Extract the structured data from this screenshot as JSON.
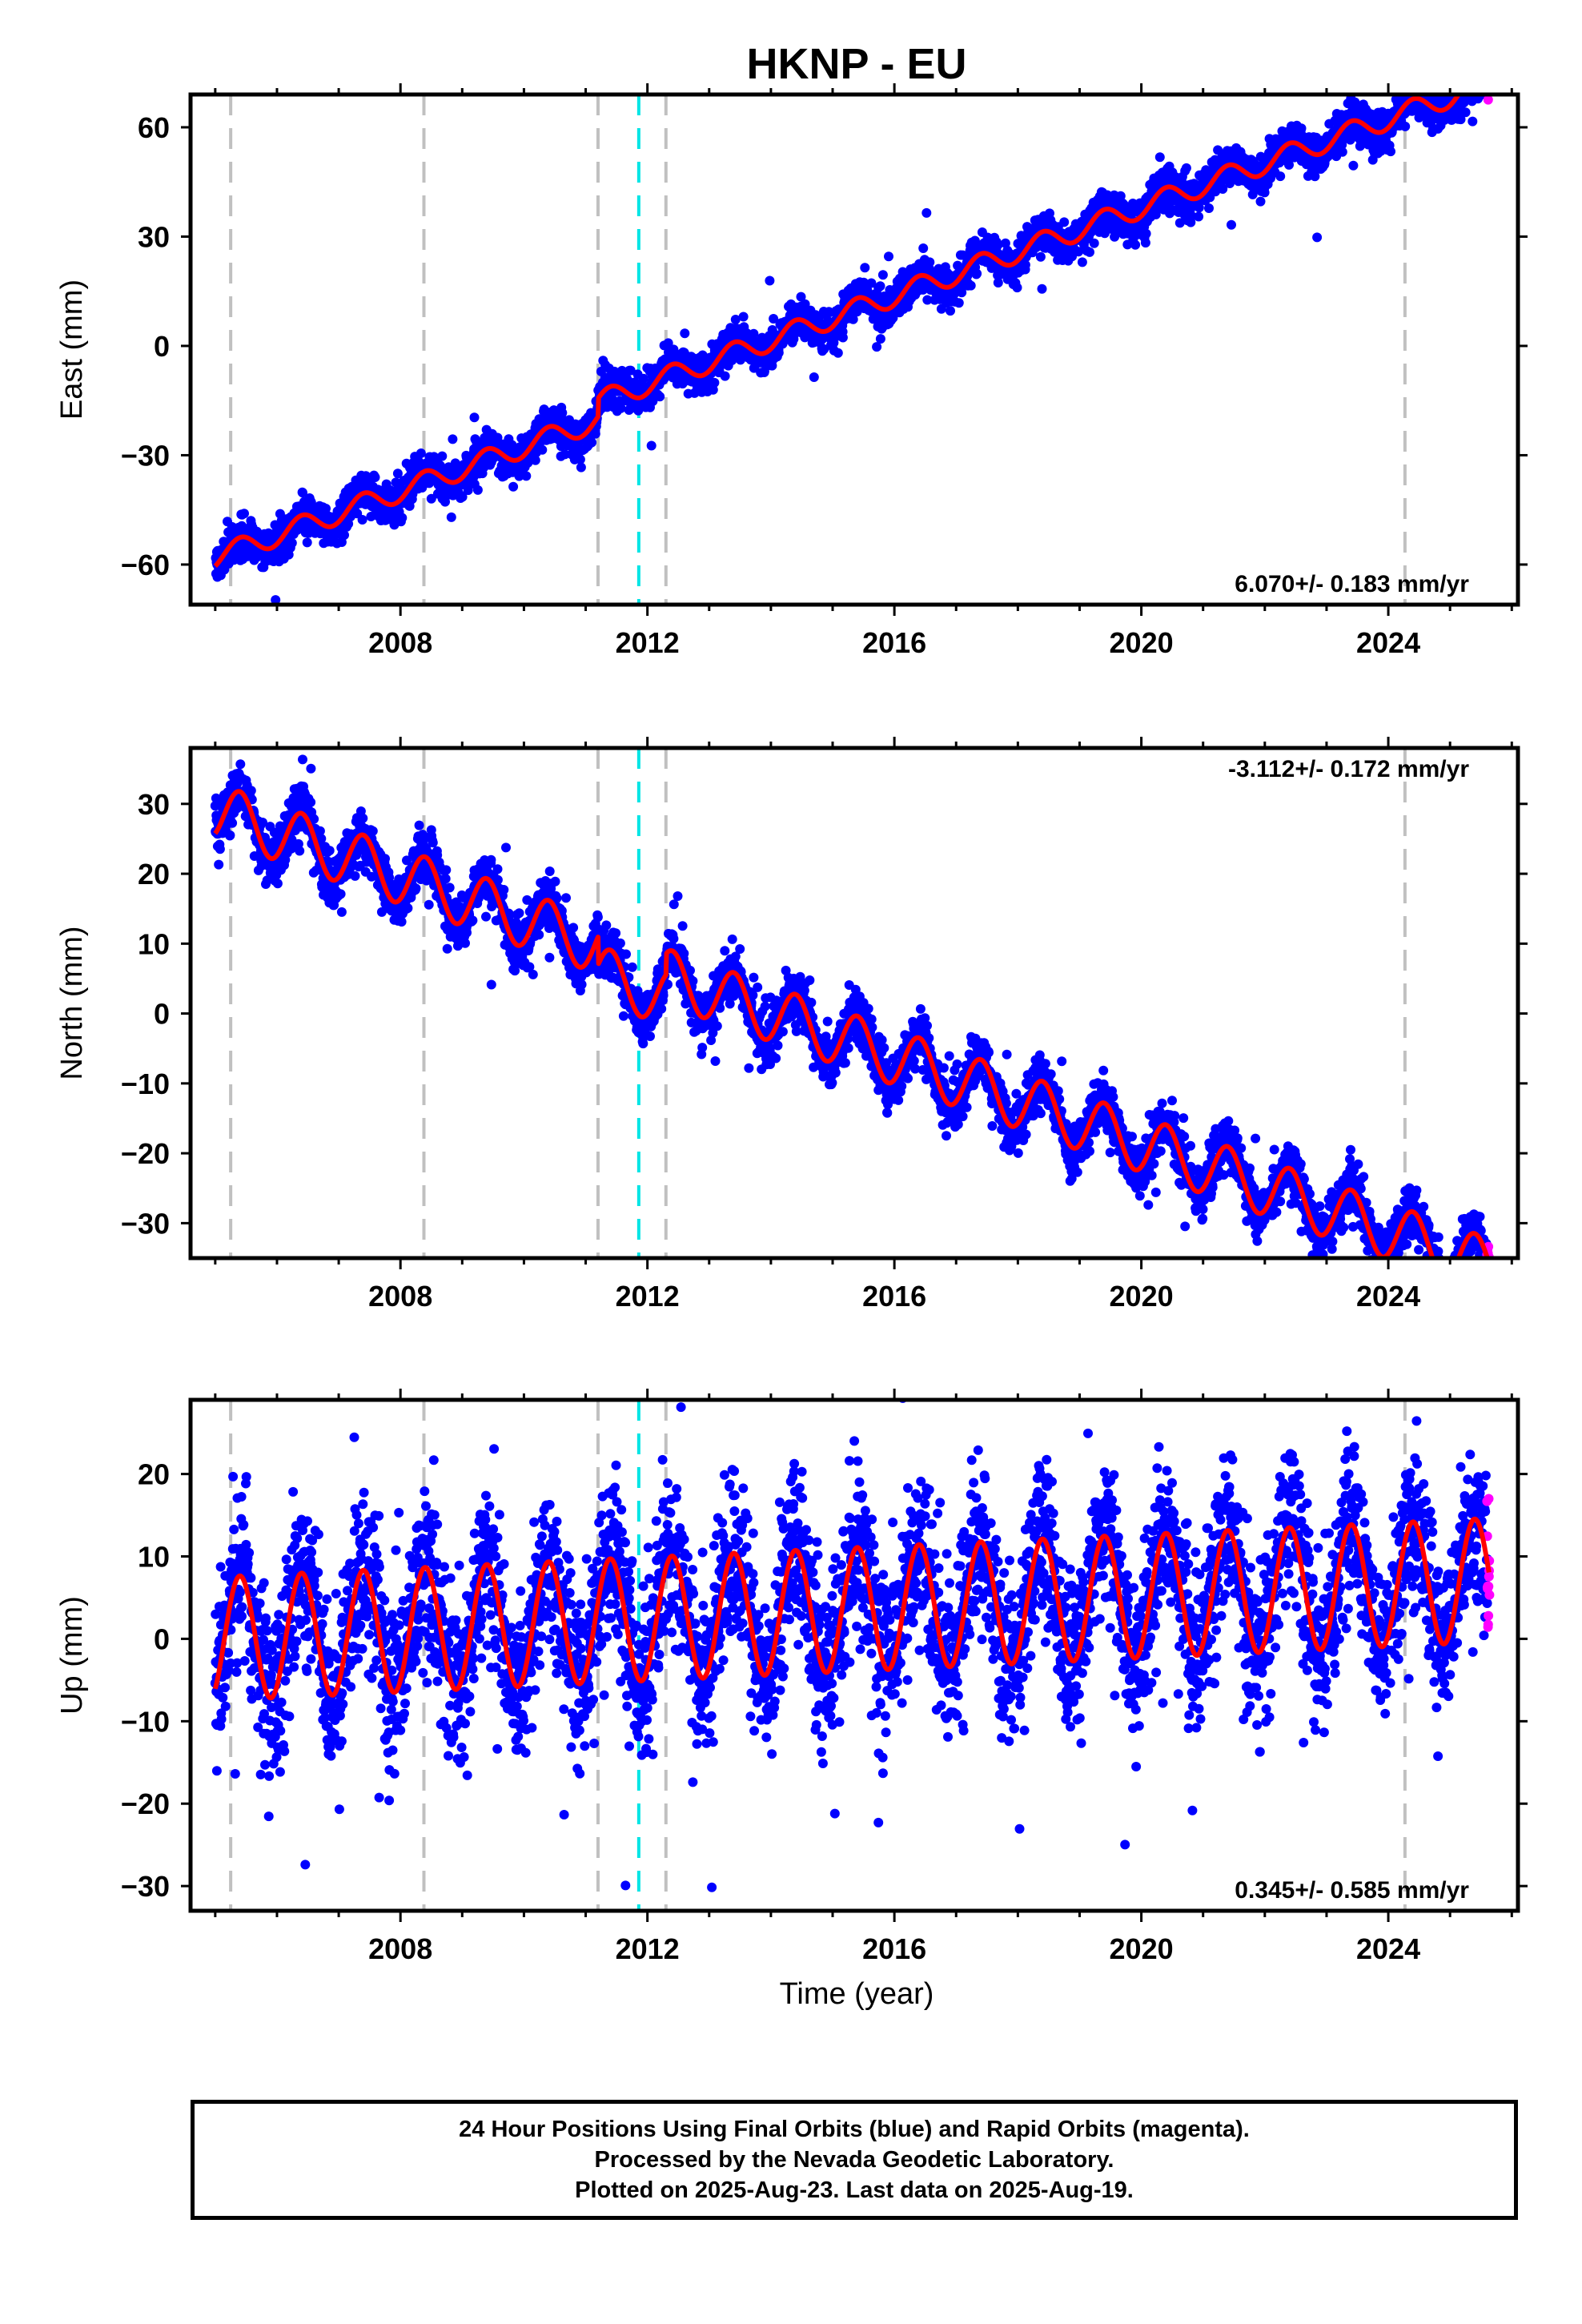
{
  "chart_data": {
    "title": "HKNP - EU",
    "type": "scatter",
    "xlabel": "Time (year)",
    "xlim": [
      2004.6,
      2026.1
    ],
    "xticks": [
      2008,
      2012,
      2016,
      2020,
      2024
    ],
    "markers": {
      "gray_dashed_epochs": [
        2005.25,
        2008.38,
        2011.2,
        2012.3,
        2024.27
      ],
      "cyan_dashed_epochs": [
        11.86
      ]
    },
    "colors": {
      "final_orbits": "#0000ff",
      "rapid_orbits": "#ff00ff",
      "model": "#ff0000",
      "gray_marker": "#c0c0c0",
      "cyan_marker": "#00e5e5"
    },
    "data_span": [
      2005.0,
      2025.63
    ],
    "panels": [
      {
        "name": "east",
        "ylabel": "East (mm)",
        "ylim": [
          -71,
          69
        ],
        "yticks": [
          -60,
          -30,
          0,
          30,
          60
        ],
        "rate": "6.070+/- 0.183 mm/yr",
        "rate_position": "bottom-right",
        "trend": {
          "start_year": 2005.0,
          "start_value": -58,
          "rate": 6.07
        },
        "annual_amplitude": 3.0,
        "scatter": 2.6,
        "offsets": [
          {
            "year": 2011.2,
            "value": 5
          }
        ]
      },
      {
        "name": "north",
        "ylabel": "North (mm)",
        "ylim": [
          -35,
          38
        ],
        "yticks": [
          -30,
          -20,
          -10,
          0,
          10,
          20,
          30
        ],
        "rate": "-3.112+/- 0.172 mm/yr",
        "rate_position": "top-right",
        "trend": {
          "start_year": 2005.0,
          "start_value": 29,
          "rate": -3.112
        },
        "annual_amplitude": 4.0,
        "scatter": 1.8,
        "offsets": [
          {
            "year": 2011.2,
            "value": -4
          },
          {
            "year": 2012.3,
            "value": 3
          }
        ]
      },
      {
        "name": "up",
        "ylabel": "Up (mm)",
        "ylim": [
          -33,
          29
        ],
        "yticks": [
          -30,
          -20,
          -10,
          0,
          10,
          20
        ],
        "rate": "0.345+/- 0.585 mm/yr",
        "rate_position": "bottom-right",
        "trend": {
          "start_year": 2005.0,
          "start_value": 0,
          "rate": 0.345
        },
        "annual_amplitude": 7.5,
        "scatter": 5.0,
        "offsets": []
      }
    ]
  },
  "caption": {
    "line1": "24 Hour Positions Using Final Orbits (blue) and Rapid Orbits (magenta).",
    "line2": "Processed by the Nevada Geodetic Laboratory.",
    "line3": "Plotted on 2025-Aug-23. Last data on 2025-Aug-19."
  }
}
